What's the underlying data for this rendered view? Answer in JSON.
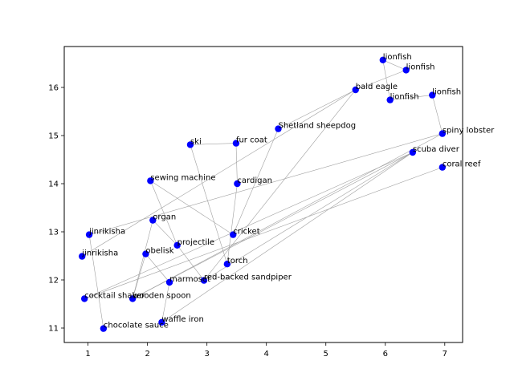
{
  "chart_data": {
    "type": "scatter",
    "title": "",
    "xlabel": "",
    "ylabel": "",
    "xlim": [
      0.6,
      7.3
    ],
    "ylim": [
      10.7,
      16.85
    ],
    "xticks": [
      1,
      2,
      3,
      4,
      5,
      6,
      7
    ],
    "yticks": [
      11,
      12,
      13,
      14,
      15,
      16
    ],
    "grid": false,
    "marker_color": "#0000ff",
    "edge_color": "#a0a0a0",
    "points": [
      {
        "label": "lionfish",
        "x": 5.96,
        "y": 16.57
      },
      {
        "label": "lionfish",
        "x": 6.35,
        "y": 16.36
      },
      {
        "label": "bald eagle",
        "x": 5.5,
        "y": 15.95
      },
      {
        "label": "lionfish",
        "x": 6.79,
        "y": 15.84
      },
      {
        "label": "lionfish",
        "x": 6.08,
        "y": 15.74
      },
      {
        "label": "Shetland sheepdog",
        "x": 4.2,
        "y": 15.14
      },
      {
        "label": "spiny lobster",
        "x": 6.96,
        "y": 15.04
      },
      {
        "label": "ski",
        "x": 2.72,
        "y": 14.81
      },
      {
        "label": "fur coat",
        "x": 3.49,
        "y": 14.84
      },
      {
        "label": "scuba diver",
        "x": 6.46,
        "y": 14.65
      },
      {
        "label": "coral reef",
        "x": 6.96,
        "y": 14.34
      },
      {
        "label": "sewing machine",
        "x": 2.05,
        "y": 14.06
      },
      {
        "label": "cardigan",
        "x": 3.51,
        "y": 14.0
      },
      {
        "label": "organ",
        "x": 2.09,
        "y": 13.24
      },
      {
        "label": "jinrikisha",
        "x": 1.02,
        "y": 12.94
      },
      {
        "label": "cricket",
        "x": 3.44,
        "y": 12.94
      },
      {
        "label": "projectile",
        "x": 2.5,
        "y": 12.72
      },
      {
        "label": "obelisk",
        "x": 1.97,
        "y": 12.54
      },
      {
        "label": "jinrikisha",
        "x": 0.9,
        "y": 12.49
      },
      {
        "label": "torch",
        "x": 3.34,
        "y": 12.33
      },
      {
        "label": "red-backed sandpiper",
        "x": 2.95,
        "y": 11.99
      },
      {
        "label": "marmoset",
        "x": 2.37,
        "y": 11.95
      },
      {
        "label": "cocktail shaker",
        "x": 0.94,
        "y": 11.61
      },
      {
        "label": "wooden spoon",
        "x": 1.75,
        "y": 11.61
      },
      {
        "label": "waffle iron",
        "x": 2.24,
        "y": 11.12
      },
      {
        "label": "chocolate sauce",
        "x": 1.26,
        "y": 10.99
      }
    ],
    "edges": [
      [
        0,
        1
      ],
      [
        0,
        4
      ],
      [
        3,
        4
      ],
      [
        1,
        2
      ],
      [
        2,
        5
      ],
      [
        2,
        18
      ],
      [
        2,
        20
      ],
      [
        3,
        6
      ],
      [
        6,
        14
      ],
      [
        6,
        23
      ],
      [
        9,
        20
      ],
      [
        9,
        22
      ],
      [
        9,
        23
      ],
      [
        9,
        24
      ],
      [
        10,
        22
      ],
      [
        5,
        15
      ],
      [
        7,
        8
      ],
      [
        7,
        19
      ],
      [
        8,
        12
      ],
      [
        11,
        16
      ],
      [
        11,
        15
      ],
      [
        12,
        19
      ],
      [
        13,
        16
      ],
      [
        13,
        23
      ],
      [
        16,
        20
      ],
      [
        17,
        21
      ],
      [
        17,
        23
      ],
      [
        21,
        24
      ],
      [
        14,
        25
      ]
    ]
  }
}
